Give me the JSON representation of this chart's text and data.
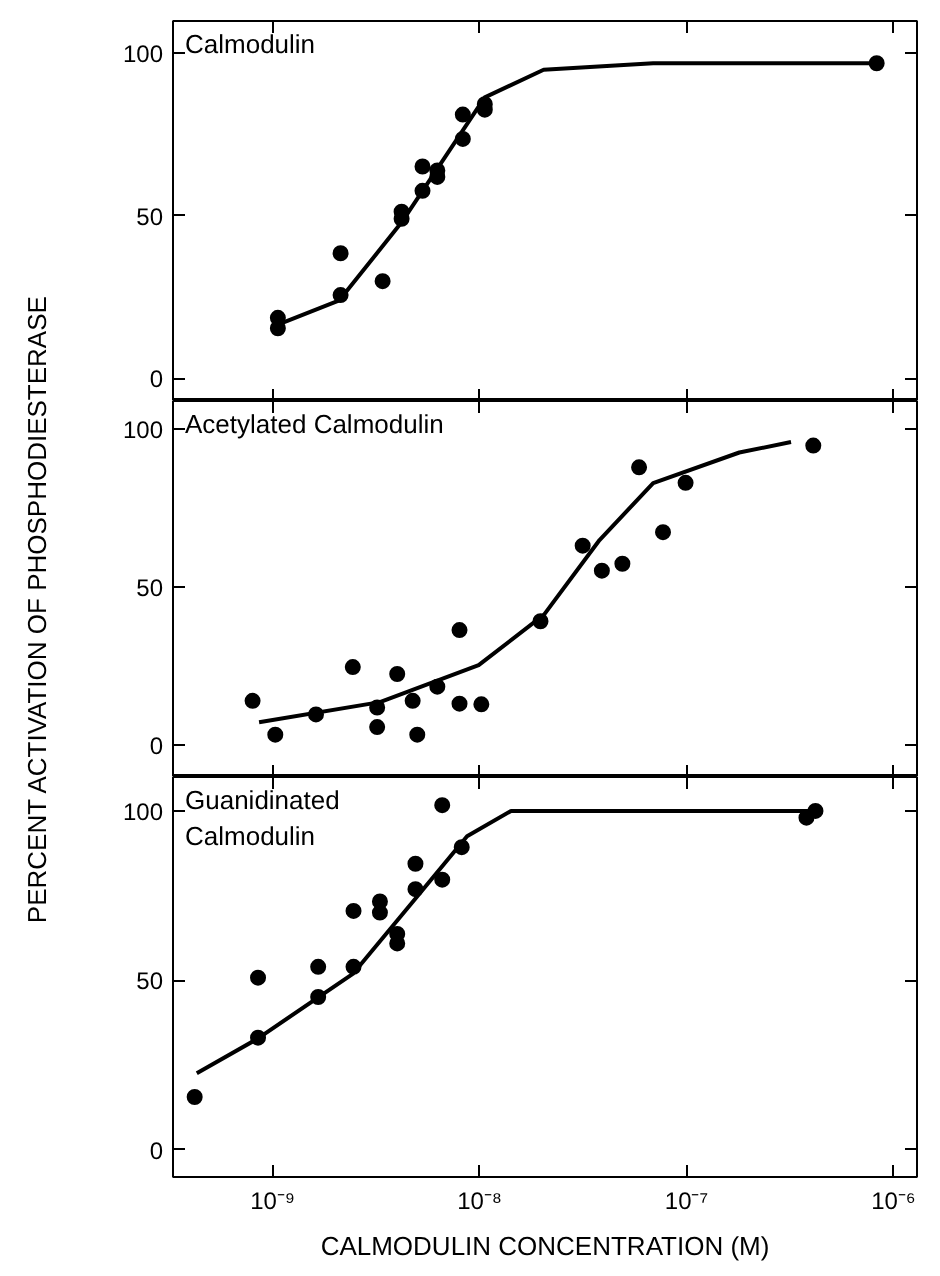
{
  "chart_data": [
    {
      "type": "scatter",
      "title": "Calmodulin",
      "ylabel": "PERCENT ACTIVATION OF PHOSPHODIESTERASE",
      "log": "x",
      "xlim": [
        3.3e-10,
        1.3e-06
      ],
      "ylim": [
        -7,
        110
      ],
      "xticks": [
        {
          "value": 1e-09,
          "label": null
        },
        {
          "value": 1e-08,
          "label": null
        },
        {
          "value": 1e-07,
          "label": null
        },
        {
          "value": 1e-06,
          "label": null
        }
      ],
      "yticks": [
        0,
        50,
        100
      ],
      "tick_labels": "y",
      "grid": false,
      "marker": "circle",
      "series": [
        {
          "color": "#000000",
          "x": [
            1.06e-09,
            1.06e-09,
            2.13e-09,
            2.13e-09,
            3.4e-09,
            4.2e-09,
            4.2e-09,
            5.3e-09,
            5.3e-09,
            6.25e-09,
            6.25e-09,
            8.3e-09,
            8.3e-09,
            1.06e-08,
            1.06e-08,
            8.3e-07
          ],
          "values": [
            18.6,
            15.4,
            38.5,
            25.6,
            29.9,
            49.1,
            51.3,
            65.2,
            57.7,
            62,
            64,
            81.2,
            73.7,
            84.4,
            82.7,
            97
          ]
        },
        {
          "type": "line",
          "color": "#000000",
          "marker": "none",
          "x": [
            1.06e-09,
            2.1e-09,
            4.2e-09,
            1.06e-08,
            2.04e-08,
            6.9e-08,
            2e-07,
            8.3e-07
          ],
          "values": [
            16.5,
            24,
            48,
            86.5,
            95,
            97,
            97,
            97
          ]
        }
      ]
    },
    {
      "type": "scatter",
      "title": "Acetylated Calmodulin",
      "log": "x",
      "xlim": [
        3.3e-10,
        1.3e-06
      ],
      "ylim": [
        -10,
        109
      ],
      "xticks": [
        {
          "value": 1e-09,
          "label": null
        },
        {
          "value": 1e-08,
          "label": null
        },
        {
          "value": 1e-07,
          "label": null
        },
        {
          "value": 1e-06,
          "label": null
        }
      ],
      "yticks": [
        0,
        50,
        100
      ],
      "tick_labels": "y",
      "grid": false,
      "marker": "circle",
      "series": [
        {
          "color": "#000000",
          "x": [
            8e-10,
            1.03e-09,
            1.62e-09,
            2.44e-09,
            3.2e-09,
            3.2e-09,
            4e-09,
            4.75e-09,
            5e-09,
            6.25e-09,
            8e-09,
            8e-09,
            1.02e-08,
            1.97e-08,
            3.15e-08,
            3.9e-08,
            4.9e-08,
            5.9e-08,
            7.7e-08,
            9.9e-08,
            4.1e-07
          ],
          "values": [
            14.1,
            3.4,
            9.8,
            24.8,
            12,
            5.8,
            22.6,
            14.1,
            3.4,
            18.6,
            36.5,
            13.2,
            13,
            39.3,
            63.2,
            55.3,
            57.5,
            88,
            67.5,
            83.1,
            94.9
          ]
        },
        {
          "type": "line",
          "color": "#000000",
          "marker": "none",
          "x": [
            8.6e-10,
            3.3e-09,
            9.9e-09,
            2.05e-08,
            3.8e-08,
            6.9e-08,
            1.8e-07,
            3.2e-07
          ],
          "values": [
            7.3,
            13.7,
            25.4,
            41.4,
            65,
            83,
            92.7,
            96
          ]
        }
      ]
    },
    {
      "type": "scatter",
      "title": "Guanidinated\nCalmodulin",
      "xlabel": "CALMODULIN CONCENTRATION (M)",
      "log": "x",
      "xlim": [
        3.3e-10,
        1.3e-06
      ],
      "ylim": [
        -8,
        110
      ],
      "xticks": [
        {
          "value": 1e-09,
          "label": "10⁻⁹"
        },
        {
          "value": 1e-08,
          "label": "10⁻⁸"
        },
        {
          "value": 1e-07,
          "label": "10⁻⁷"
        },
        {
          "value": 1e-06,
          "label": "10⁻⁶"
        }
      ],
      "yticks": [
        0,
        50,
        100
      ],
      "grid": false,
      "marker": "circle",
      "series": [
        {
          "color": "#000000",
          "x": [
            4.2e-10,
            8.5e-10,
            8.5e-10,
            1.66e-09,
            1.66e-09,
            2.46e-09,
            2.46e-09,
            3.3e-09,
            3.3e-09,
            4e-09,
            4e-09,
            4.9e-09,
            4.9e-09,
            6.6e-09,
            6.6e-09,
            8.2e-09,
            3.8e-07,
            4.2e-07
          ],
          "values": [
            15.6,
            50.8,
            33.1,
            54,
            45.1,
            54,
            70.5,
            73.3,
            70,
            63.7,
            60.9,
            84.4,
            76.9,
            101.7,
            79.7,
            89.3,
            98,
            100
          ]
        },
        {
          "type": "line",
          "color": "#000000",
          "marker": "none",
          "x": [
            4.3e-10,
            8.4e-10,
            2.44e-09,
            5.1e-09,
            8.7e-09,
            1.42e-08,
            4e-07
          ],
          "values": [
            22.6,
            32.7,
            51.9,
            75.4,
            92.5,
            100,
            100
          ]
        }
      ]
    }
  ]
}
